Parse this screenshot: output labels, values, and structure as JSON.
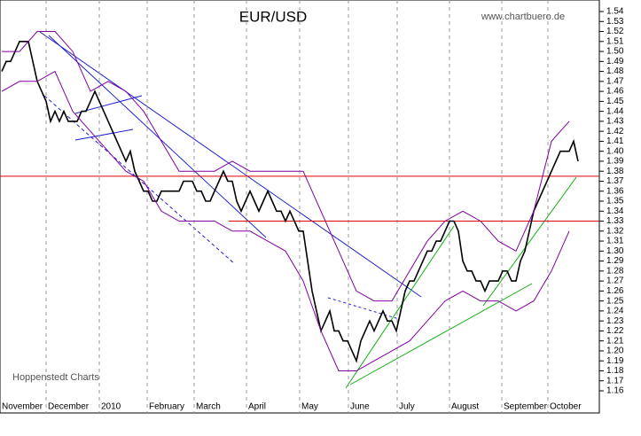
{
  "chart_data": {
    "type": "line",
    "title": "EUR/USD",
    "subtitle": "www.chartbuero.de",
    "annotation": "Hoppenstedt Charts",
    "x_labels": [
      "November",
      "December",
      "2010",
      "February",
      "March",
      "April",
      "May",
      "June",
      "July",
      "August",
      "September",
      "October"
    ],
    "ylim": [
      1.16,
      1.54
    ],
    "yticks": [
      1.54,
      1.53,
      1.52,
      1.51,
      {
        "value": 1.5,
        "label": "1.50"
      },
      1.49,
      1.48,
      1.47,
      1.46,
      1.45,
      1.44,
      1.43,
      1.42,
      1.41,
      {
        "value": 1.4,
        "label": "1.40"
      },
      1.39,
      1.38,
      1.37,
      1.36,
      1.35,
      1.34,
      1.33,
      1.32,
      1.31,
      {
        "value": 1.3,
        "label": "1.30"
      },
      1.29,
      1.28,
      1.27,
      1.26,
      1.25,
      1.24,
      1.23,
      1.22,
      1.21,
      {
        "value": 1.2,
        "label": "1.20"
      },
      1.19,
      1.18,
      1.17,
      1.16
    ],
    "hlines": [
      1.375,
      1.33
    ],
    "hline_color": "#e00000",
    "series": [
      {
        "color": "#000000",
        "values": [
          1.48,
          1.49,
          1.49,
          1.5,
          1.51,
          1.51,
          1.51,
          1.49,
          1.47,
          1.46,
          1.45,
          1.43,
          1.44,
          1.43,
          1.44,
          1.43,
          1.43,
          1.43,
          1.44,
          1.44,
          1.45,
          1.46,
          1.45,
          1.44,
          1.43,
          1.42,
          1.41,
          1.4,
          1.39,
          1.4,
          1.38,
          1.37,
          1.36,
          1.36,
          1.35,
          1.35,
          1.36,
          1.36,
          1.36,
          1.36,
          1.36,
          1.37,
          1.37,
          1.37,
          1.36,
          1.36,
          1.35,
          1.35,
          1.36,
          1.37,
          1.38,
          1.37,
          1.37,
          1.35,
          1.34,
          1.35,
          1.36,
          1.35,
          1.34,
          1.35,
          1.36,
          1.35,
          1.34,
          1.34,
          1.33,
          1.34,
          1.33,
          1.32,
          1.32,
          1.29,
          1.26,
          1.24,
          1.22,
          1.23,
          1.24,
          1.22,
          1.22,
          1.21,
          1.21,
          1.2,
          1.19,
          1.21,
          1.22,
          1.23,
          1.22,
          1.23,
          1.24,
          1.23,
          1.23,
          1.22,
          1.24,
          1.26,
          1.27,
          1.27,
          1.28,
          1.29,
          1.3,
          1.3,
          1.31,
          1.31,
          1.32,
          1.33,
          1.33,
          1.32,
          1.29,
          1.28,
          1.28,
          1.27,
          1.27,
          1.26,
          1.27,
          1.27,
          1.27,
          1.28,
          1.28,
          1.27,
          1.27,
          1.29,
          1.3,
          1.32,
          1.34,
          1.35,
          1.36,
          1.37,
          1.38,
          1.39,
          1.4,
          1.4,
          1.4,
          1.41,
          1.39
        ]
      },
      {
        "color": "#8000a0",
        "values": [
          1.5,
          1.5,
          1.52,
          1.52,
          1.5,
          1.46,
          1.47,
          1.46,
          1.44,
          1.41,
          1.38,
          1.38,
          1.38,
          1.39,
          1.38,
          1.38,
          1.38,
          1.38,
          1.34,
          1.3,
          1.26,
          1.25,
          1.25,
          1.28,
          1.31,
          1.33,
          1.34,
          1.33,
          1.31,
          1.3,
          1.34,
          1.41,
          1.43
        ]
      },
      {
        "color": "#8000a0",
        "values": [
          1.46,
          1.47,
          1.47,
          1.48,
          1.44,
          1.42,
          1.4,
          1.38,
          1.37,
          1.34,
          1.33,
          1.33,
          1.33,
          1.32,
          1.32,
          1.31,
          1.3,
          1.27,
          1.22,
          1.18,
          1.18,
          1.19,
          1.2,
          1.21,
          1.23,
          1.25,
          1.26,
          1.25,
          1.25,
          1.24,
          1.25,
          1.28,
          1.32
        ]
      }
    ]
  }
}
